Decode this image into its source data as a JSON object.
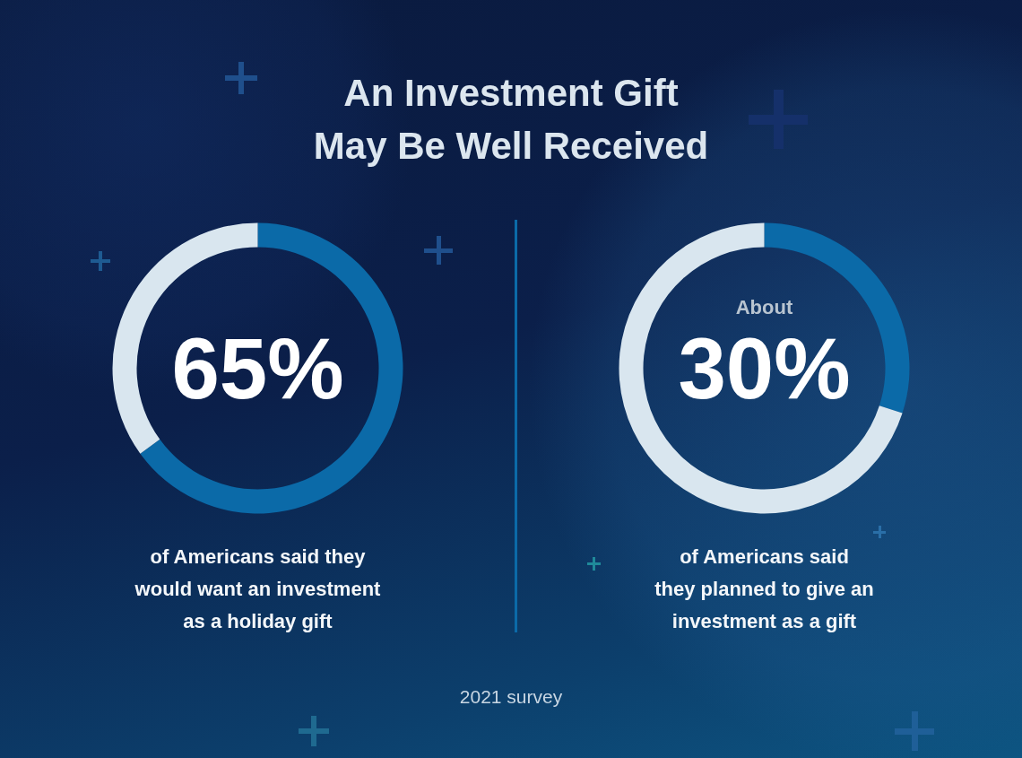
{
  "chart_data": [
    {
      "type": "donut",
      "title": "An Investment Gift\nMay Be Well Received",
      "categories": [
        null,
        null
      ],
      "values": [
        65,
        35
      ],
      "colors": [
        "#0b6aa8",
        "#d9e6ef"
      ],
      "annotations": [
        "65%"
      ],
      "subtitle": "of Americans said they\nwould want an investment\nas a holiday gift"
    },
    {
      "type": "donut",
      "categories": [
        null,
        null
      ],
      "values": [
        30,
        70
      ],
      "colors": [
        "#0b6aa8",
        "#d9e6ef"
      ],
      "annotations": [
        "About",
        "30%"
      ],
      "subtitle": "of Americans said\nthey planned to give an\ninvestment as a gift"
    },
    {
      "type": "other",
      "annotations": [
        "2021 survey"
      ]
    }
  ]
}
